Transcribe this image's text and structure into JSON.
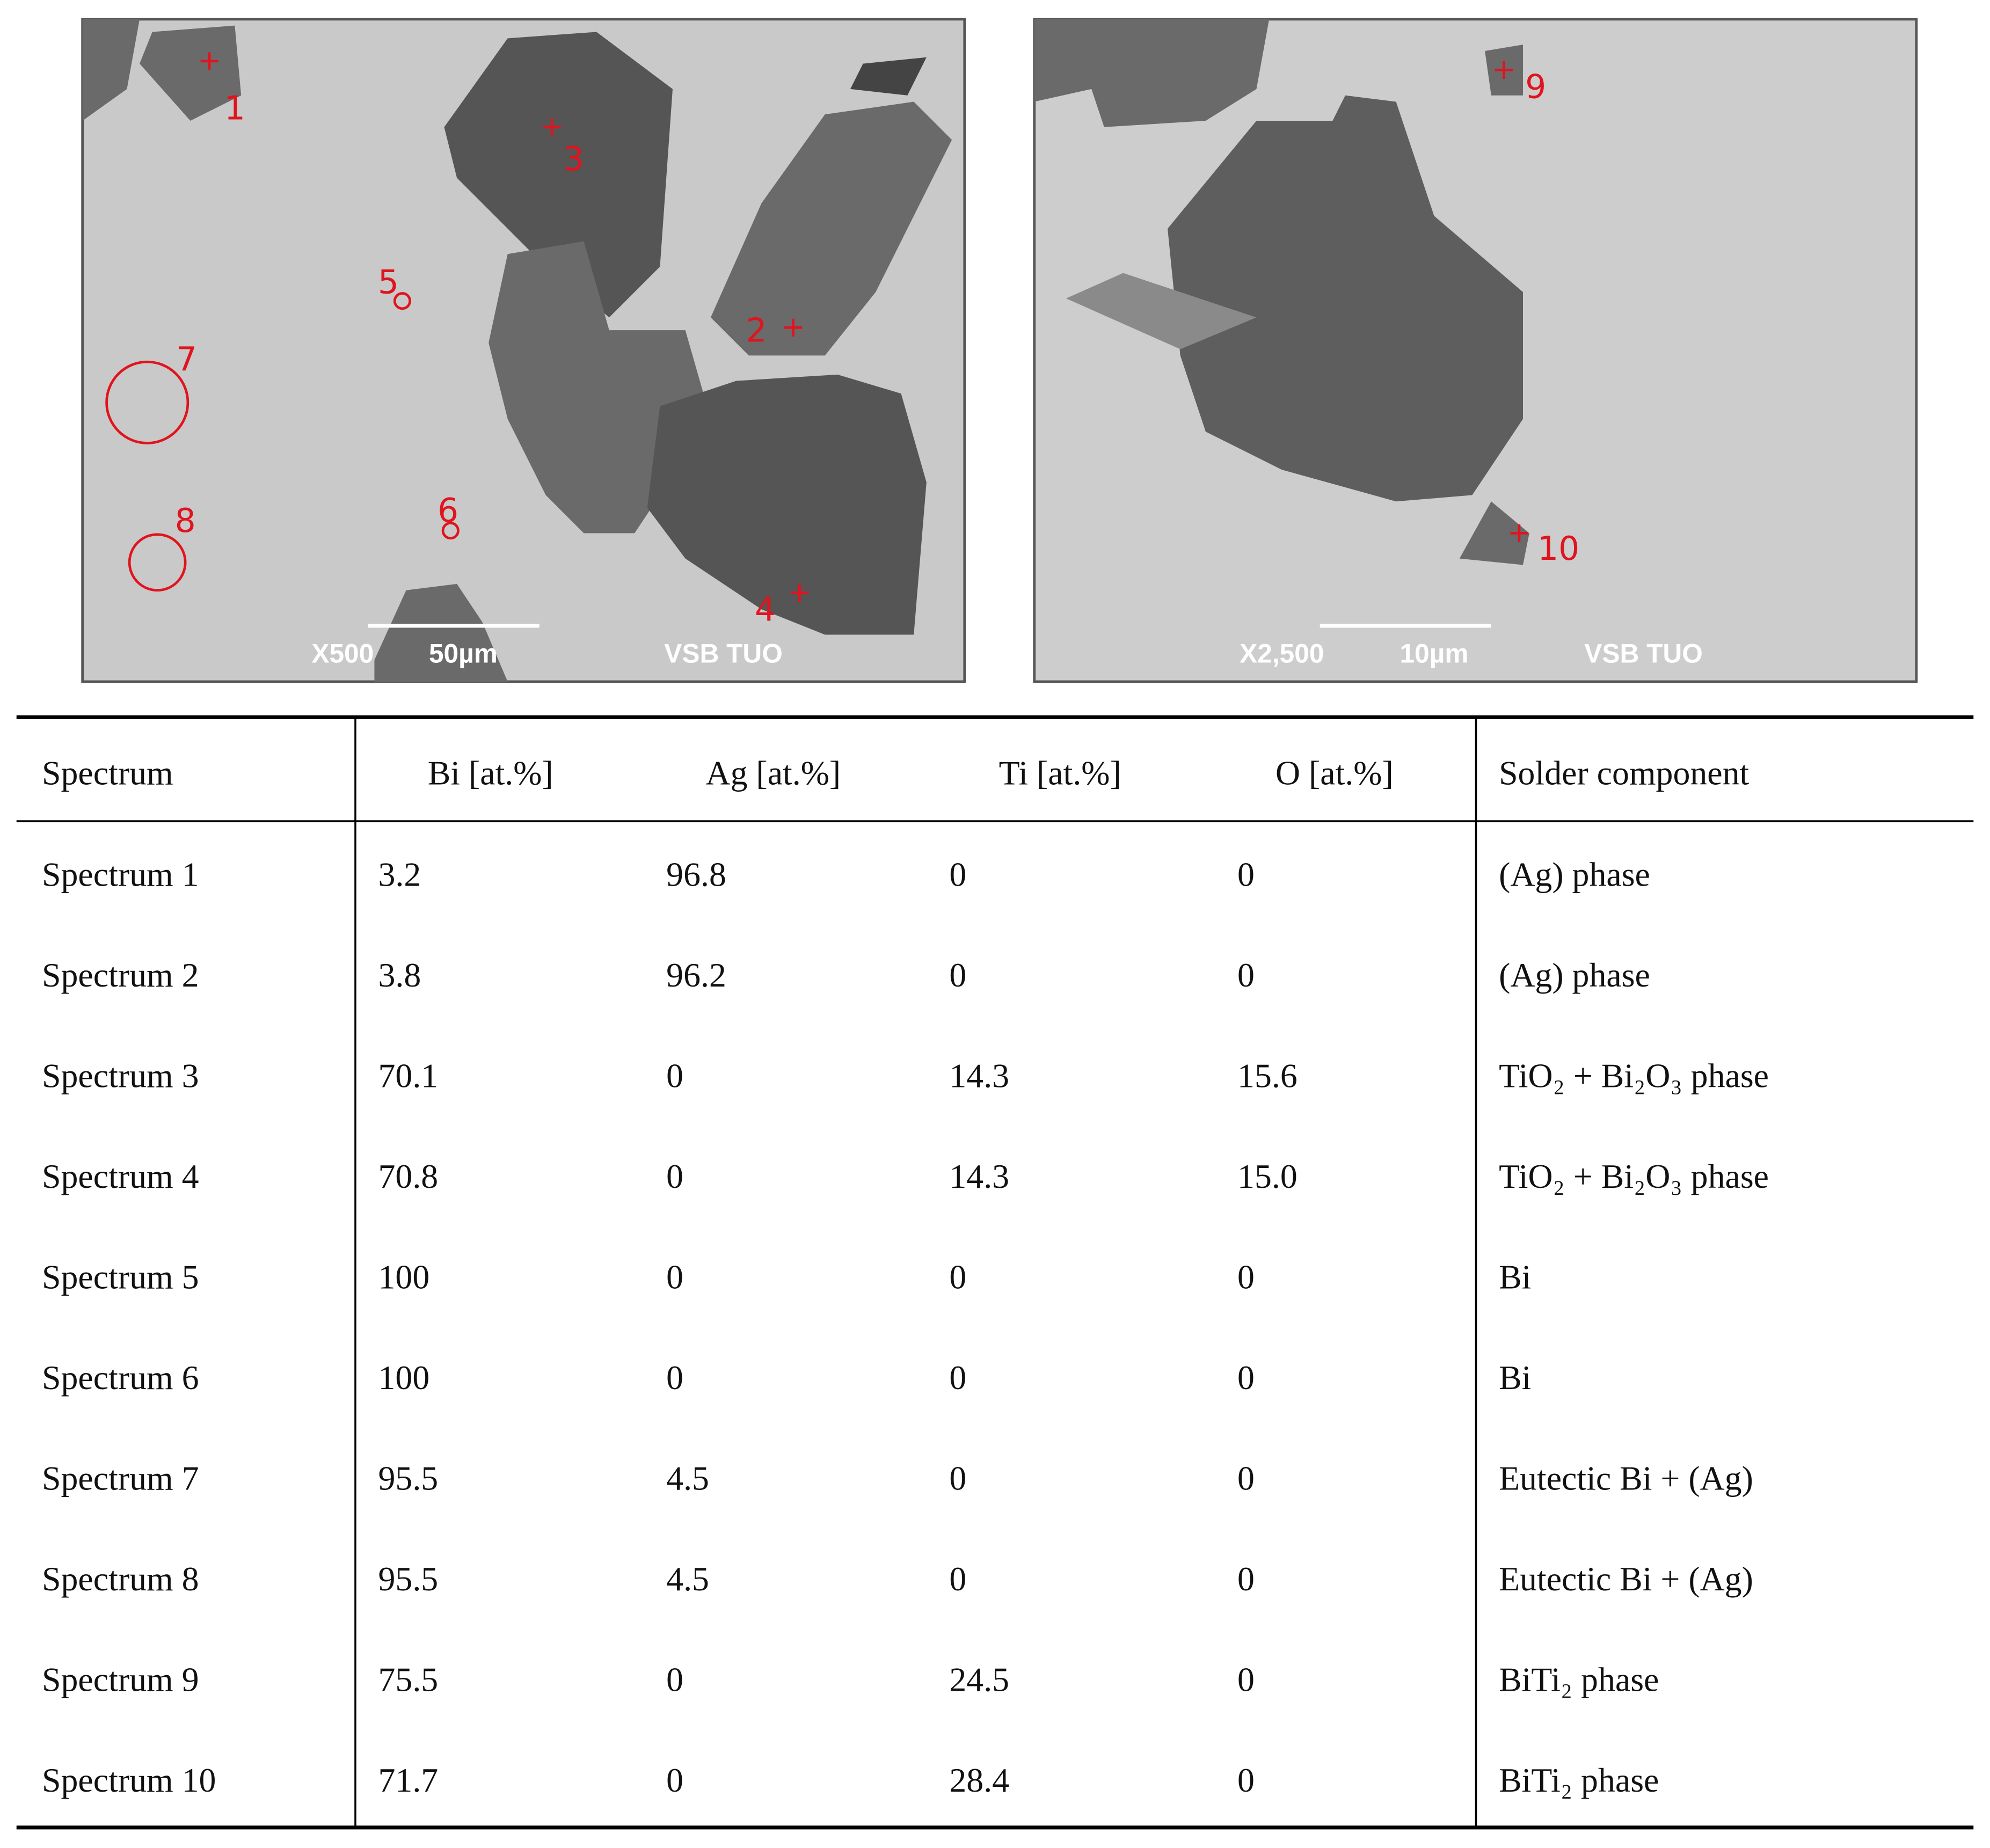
{
  "images": [
    {
      "markers": [
        "1",
        "2",
        "3",
        "4",
        "5",
        "6",
        "7",
        "8"
      ],
      "magnification": "X500",
      "scale": "50µm",
      "lab": "VSB TUO"
    },
    {
      "markers": [
        "9",
        "10"
      ],
      "magnification": "X2,500",
      "scale": "10µm",
      "lab": "VSB TUO"
    }
  ],
  "table": {
    "header": [
      "Spectrum",
      "Bi [at.%]",
      "Ag [at.%]",
      "Ti [at.%]",
      "O [at.%]",
      "Solder component"
    ],
    "rows": [
      [
        "Spectrum 1",
        "3.2",
        "96.8",
        "0",
        "0",
        "(Ag) phase"
      ],
      [
        "Spectrum 2",
        "3.8",
        "96.2",
        "0",
        "0",
        "(Ag) phase"
      ],
      [
        "Spectrum 3",
        "70.1",
        "0",
        "14.3",
        "15.6",
        "TiO₂ + Bi₂O₃ phase"
      ],
      [
        "Spectrum 4",
        "70.8",
        "0",
        "14.3",
        "15.0",
        "TiO₂ + Bi₂O₃ phase"
      ],
      [
        "Spectrum 5",
        "100",
        "0",
        "0",
        "0",
        "Bi"
      ],
      [
        "Spectrum 6",
        "100",
        "0",
        "0",
        "0",
        "Bi"
      ],
      [
        "Spectrum 7",
        "95.5",
        "4.5",
        "0",
        "0",
        "Eutectic Bi + (Ag)"
      ],
      [
        "Spectrum 8",
        "95.5",
        "4.5",
        "0",
        "0",
        "Eutectic Bi + (Ag)"
      ],
      [
        "Spectrum 9",
        "75.5",
        "0",
        "24.5",
        "0",
        "BiTi₂ phase"
      ],
      [
        "Spectrum 10",
        "71.7",
        "0",
        "28.4",
        "0",
        "BiTi₂ phase"
      ]
    ]
  }
}
